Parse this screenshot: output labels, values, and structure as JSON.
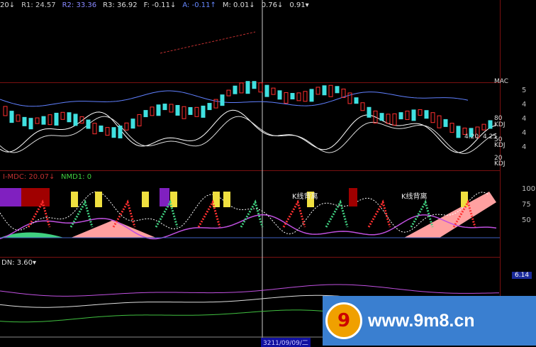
{
  "header": {
    "items": [
      {
        "text": "20↓",
        "color": "#ddd"
      },
      {
        "text": "R1: 24.57",
        "color": "#c8c8c8"
      },
      {
        "text": "R2: 33.36",
        "color": "#8888ff"
      },
      {
        "text": "R3: 36.92",
        "color": "#ddd"
      },
      {
        "text": "F: -0.11↓",
        "color": "#ddd"
      },
      {
        "text": "A: -0.11↑",
        "color": "#6688ff"
      },
      {
        "text": "M: 0.01↓",
        "color": "#ddd"
      },
      {
        "text": "0.76↓",
        "color": "#ddd"
      },
      {
        "text": "0.91▾",
        "color": "#ddd"
      }
    ]
  },
  "kline_panel": {
    "label_mac": "MAC",
    "label_80": "80",
    "label_kdj1": "KDJ",
    "price_low": "4.20",
    "price_high": "4.25",
    "label_50": "50",
    "label_kdj2": "KDJ",
    "label_20": "20",
    "label_kdj3": "KDJ",
    "axis": [
      "5",
      "4",
      "4",
      "4",
      "4"
    ]
  },
  "mdc_panel": {
    "title": "I-MDC: 20.07↓",
    "nmd": "NMD1: 0",
    "divergence_1": "K线背离",
    "divergence_2": "K线背离",
    "axis": [
      "100",
      "75",
      "50"
    ]
  },
  "dn_panel": {
    "title": "DN: 3.60▾",
    "badge": "6.14"
  },
  "footer": {
    "date": "3211/09/09/二"
  },
  "watermark": {
    "logo": "9",
    "url": "www.9m8.cn"
  },
  "colors": {
    "grid": "#7a1010",
    "up": "#ff3030",
    "down": "#40e0e0",
    "pink": "#ffa0a0",
    "purple": "#c050e0",
    "green": "#40d080"
  }
}
